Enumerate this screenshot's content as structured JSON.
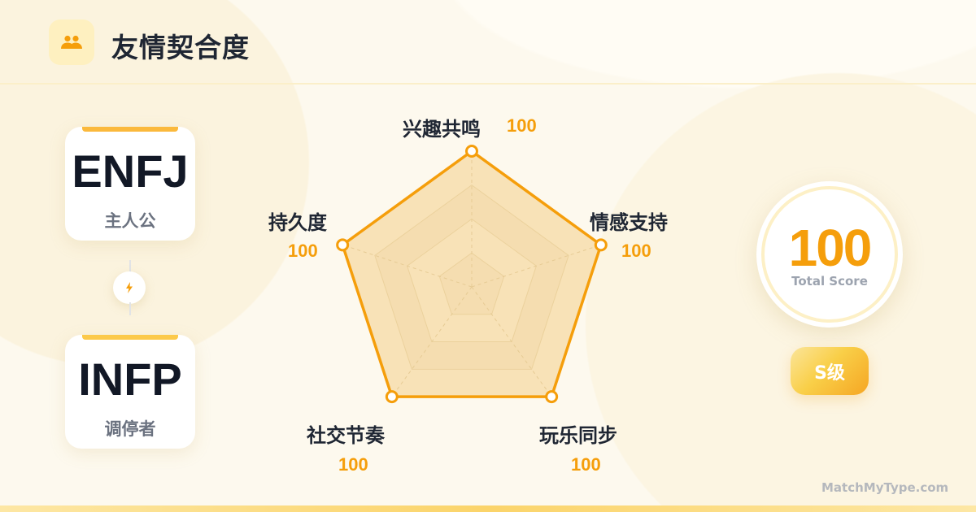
{
  "header": {
    "title": "友情契合度",
    "icon": "users-icon"
  },
  "people": [
    {
      "type": "ENFJ",
      "role": "主人公"
    },
    {
      "type": "INFP",
      "role": "调停者"
    }
  ],
  "connector_icon": "lightning-icon",
  "chart_data": {
    "type": "radar",
    "axes": [
      "兴趣共鸣",
      "情感支持",
      "玩乐同步",
      "社交节奏",
      "持久度"
    ],
    "values": [
      100,
      100,
      100,
      100,
      100
    ],
    "value_labels": [
      "100",
      "100",
      "100",
      "100",
      "100"
    ],
    "range": [
      0,
      100
    ],
    "grid_levels": 4,
    "color": "#f59e0b"
  },
  "score": {
    "value": "100",
    "label": "Total Score",
    "grade": "S级"
  },
  "footer": "MatchMyType.com",
  "colors": {
    "accent": "#f59e0b",
    "text": "#1f2633",
    "background": "#fdf9ee"
  }
}
